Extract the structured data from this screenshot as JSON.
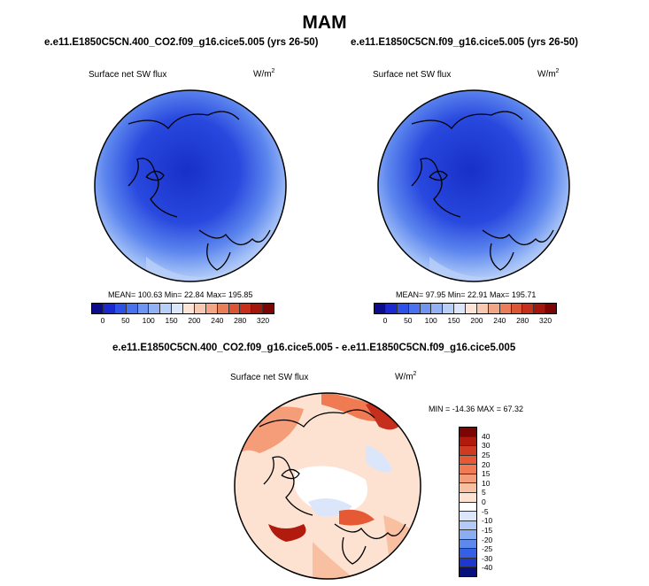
{
  "title": "MAM",
  "panels": [
    {
      "case": "e.e11.E1850C5CN.400_CO2.f09_g16.cice5.005 (yrs 26-50)",
      "variable": "Surface net SW flux",
      "units": "W/m",
      "units_sup": "2",
      "stats": "MEAN= 100.63  Min=  22.84  Max= 195.85"
    },
    {
      "case": "e.e11.E1850C5CN.f09_g16.cice5.005 (yrs 26-50)",
      "variable": "Surface net SW flux",
      "units": "W/m",
      "units_sup": "2",
      "stats": "MEAN= 97.95  Min=  22.91  Max= 195.71"
    }
  ],
  "diff": {
    "case": "e.e11.E1850C5CN.400_CO2.f09_g16.cice5.005 - e.e11.E1850C5CN.f09_g16.cice5.005",
    "variable": "Surface net SW flux",
    "units": "W/m",
    "units_sup": "2",
    "stats": "MIN = -14.36 MAX =  67.32"
  },
  "colorbar_main": {
    "labels": [
      "0",
      "50",
      "100",
      "150",
      "200",
      "240",
      "280",
      "320"
    ],
    "colors": [
      "#0b0d8c",
      "#1b2ad0",
      "#2e52e8",
      "#4a72ee",
      "#6f95f3",
      "#93b2f5",
      "#b8cff8",
      "#dbe6fb",
      "#fde4d6",
      "#f8c8b0",
      "#f2a685",
      "#ea7e58",
      "#dc5636",
      "#c62f1c",
      "#a4150c",
      "#7c0503"
    ]
  },
  "colorbar_diff": {
    "labels": [
      "40",
      "30",
      "25",
      "20",
      "15",
      "10",
      "5",
      "0",
      "-5",
      "-10",
      "-15",
      "-20",
      "-25",
      "-30",
      "-40"
    ],
    "colors": [
      "#7c0503",
      "#b01b0e",
      "#d03a20",
      "#e55a34",
      "#f07a52",
      "#f59d78",
      "#f8bfa0",
      "#fde2d2",
      "#ffffff",
      "#dbe6fb",
      "#b3caf7",
      "#8badf2",
      "#5d88ec",
      "#3560e6",
      "#1d37cf",
      "#08107e"
    ]
  }
}
